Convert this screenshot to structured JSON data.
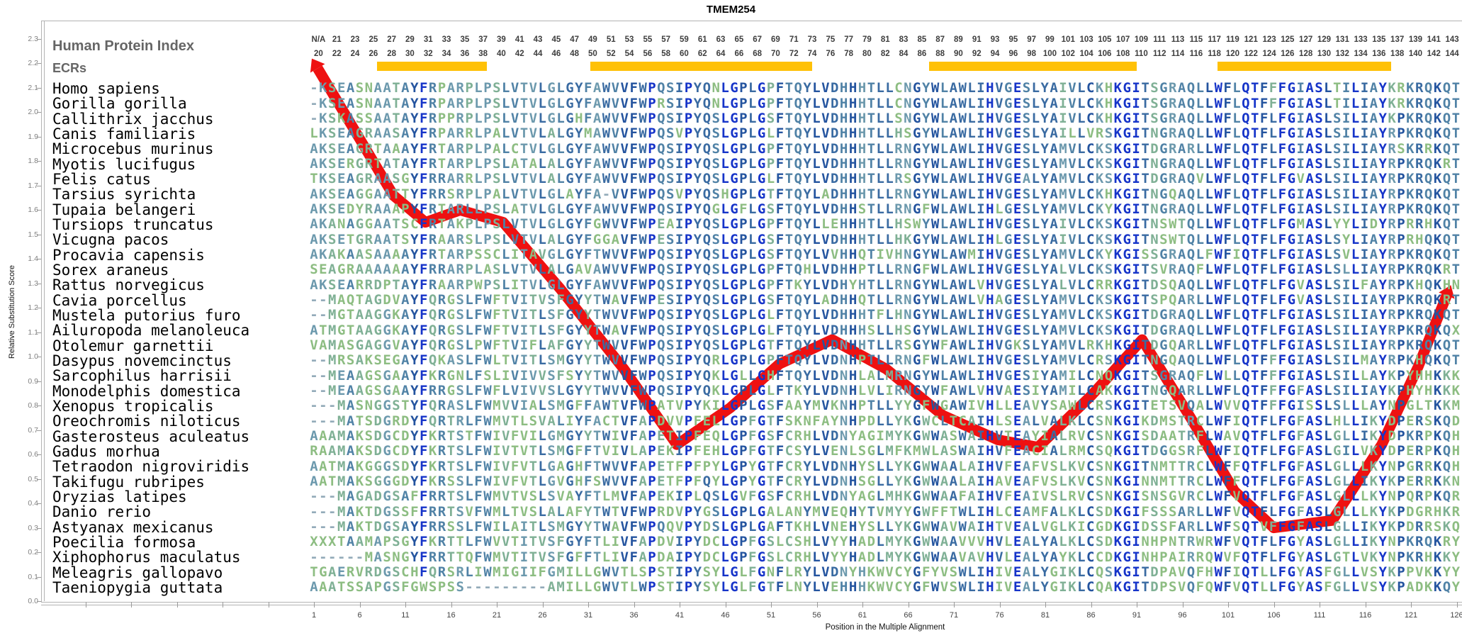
{
  "title": "TMEM254",
  "header": {
    "left_title": "Human Protein Index",
    "ecr_title": "ECRs",
    "index_row1": [
      "N/A",
      "21",
      "23",
      "25",
      "27",
      "29",
      "31",
      "33",
      "35",
      "37",
      "39",
      "41",
      "43",
      "45",
      "47",
      "49",
      "51",
      "53",
      "55",
      "57",
      "59",
      "61",
      "63",
      "65",
      "67",
      "69",
      "71",
      "73",
      "75",
      "77",
      "79",
      "81",
      "83",
      "85",
      "87",
      "89",
      "91",
      "93",
      "95",
      "97",
      "99",
      "101",
      "103",
      "105",
      "107",
      "109",
      "111",
      "113",
      "115",
      "117",
      "119",
      "121",
      "123",
      "125",
      "127",
      "129",
      "131",
      "133",
      "135",
      "137",
      "139",
      "141",
      "143"
    ],
    "index_row2": [
      "20",
      "22",
      "24",
      "26",
      "28",
      "30",
      "32",
      "34",
      "36",
      "38",
      "40",
      "42",
      "44",
      "46",
      "48",
      "50",
      "52",
      "54",
      "56",
      "58",
      "60",
      "62",
      "64",
      "66",
      "68",
      "70",
      "72",
      "74",
      "76",
      "78",
      "80",
      "82",
      "84",
      "86",
      "88",
      "90",
      "92",
      "94",
      "96",
      "98",
      "100",
      "102",
      "104",
      "106",
      "108",
      "110",
      "112",
      "114",
      "116",
      "118",
      "120",
      "122",
      "124",
      "126",
      "128",
      "130",
      "132",
      "134",
      "136",
      "138",
      "140",
      "142",
      "144"
    ]
  },
  "ecr_bars": [
    {
      "start": 8.4,
      "end": 19.4
    },
    {
      "start": 31.7,
      "end": 55.0
    },
    {
      "start": 68.8,
      "end": 90.5
    },
    {
      "start": 100.3,
      "end": 118.3
    }
  ],
  "y_axis": {
    "label": "Relative Substitution Score",
    "ticks": [
      "0.0",
      "0.1",
      "0.2",
      "0.3",
      "0.4",
      "0.5",
      "0.6",
      "0.7",
      "0.8",
      "0.9",
      "1.0",
      "1.1",
      "1.2",
      "1.3",
      "1.4",
      "1.5",
      "1.6",
      "1.7",
      "1.8",
      "1.9",
      "2.0",
      "2.1",
      "2.2",
      "2.3"
    ]
  },
  "x_axis": {
    "label": "Position in the Multiple Alignment",
    "ticks": [
      "1",
      "6",
      "11",
      "16",
      "21",
      "26",
      "31",
      "36",
      "41",
      "46",
      "51",
      "56",
      "61",
      "66",
      "71",
      "76",
      "81",
      "86",
      "91",
      "96",
      "101",
      "106",
      "111",
      "116",
      "121",
      "126"
    ]
  },
  "colors": {
    "ecr_bar": "#FFC107",
    "curve": "#ee1111",
    "header_numbers": "#3d3d3d",
    "section_titles": "#666666",
    "gap_char": "#93abb9",
    "conservation_palette": [
      {
        "min_freq": 0.97,
        "hex": "#1634c9"
      },
      {
        "min_freq": 0.85,
        "hex": "#24549f"
      },
      {
        "min_freq": 0.65,
        "hex": "#3a6ba2"
      },
      {
        "min_freq": 0.5,
        "hex": "#5082a6"
      },
      {
        "min_freq": 0.35,
        "hex": "#6c99ad"
      },
      {
        "min_freq": 0.2,
        "hex": "#7fb095"
      },
      {
        "min_freq": 0.0,
        "hex": "#8dbd82"
      }
    ]
  },
  "alignment": {
    "species": [
      {
        "name": "Homo sapiens",
        "seq": "-KSEASNAATAYFRPARPLPSLVTVLGLGYFAWVVFWPQSIPYQNLGPLGPFTQYLVDHHHTLLCNGYWLAWLIHVGESLYAIVLCKHKGITSGRAQLLWFLQTFFFGIASLTILIAYKRKRQKQT"
      },
      {
        "name": "Gorilla gorilla",
        "seq": "-KSEASNAATAYFRPARPLPSLVTVLGLGYFAWVVFWPRSIPYQNLGPLGPFTQYLVDHHHTLLCNGYWLAWLIHVGESLYAIVLCKHKGITSGRAQLLWFLQTFFFGIASLTILIAYKRKRQKQT"
      },
      {
        "name": "Callithrix jacchus",
        "seq": "-KSKASSAATAYFRPPRPLPSLVTVLGLGHFAWVVFWPQSIPYQSLGPLGSFTQYLVDHHHTLLSNGYWLAWLIHVGESLYAIVLCKHKGITSGRAQLLWFLQTFLFGIASLSILIAYKPKRQKQT"
      },
      {
        "name": "Canis familiaris",
        "seq": "LKSEAGRAASAYFRPARRLPALVTVLALGYMAWVVFWPQSVPYQSLGPLGLFTQYLVDHHHTLLHSGYWLAWLIHVGESLYAILLVRSKGITNGRAQLLWFLQTFLFGIASLSILIAYRPKRQKQT"
      },
      {
        "name": "Microcebus murinus",
        "seq": "AKSEAGRTAAAYFRTARPLPALCTVLGLGYFAWVVFWPQSIPYQSLGPLGPFTQYLVDHHHTLLRNGYWLAWLIHVGESLYAMVLCKSKGITDGRARLLWFLQTFLFGIASLSILIAYRSKRRKQT"
      },
      {
        "name": "Myotis lucifugus",
        "seq": "AKSERGRTATAYFRTARPLPSLATALALGYFAWVVFWPQSIPYQSLGPLGPFTQYLVDHHHTLLRNGYWLAWLIHVGESLYAMVLCKSKGITNGRAQLLWFLQTFLFGIASLSILIAYRPKRQKRT"
      },
      {
        "name": "Felis catus",
        "seq": "TKSEAGRAASGYFRRARRLPSLVTVLALGYFAWVVFWPQSIPYQSLGPLGLFTQYLVDHHHTLLRSGYWLAWLIHVGEALYAMVLCKSKGITDGRAQVLWFLQTFLFGVASLSILIAYRPKRQKQT"
      },
      {
        "name": "Tarsius syrichta",
        "seq": "AKSEAGGAATTYFRRSRPLPALVTVLGLAYFA-VVFWPQSVPYQSHGPLGTFTQYLADHHHTLLRNGYWLAWLIHVGESLYAMVLCKHKGITNGQAQLLWFLQTFLFGIASLSILIAYRPKRQKQT"
      },
      {
        "name": "Tupaia belangeri",
        "seq": "AKSEDYRAAAPYFRTARLLPSLATVLGLGYFAWVVFWPQSIPYQGLGFLGSFTQYLVDHHSTLLRNGFWLAWLIHLGESLYAMVLCKYKGITNGRAQLLWFLQTFLFGIASLSILIAYRPKRQKQT"
      },
      {
        "name": "Tursiops truncatus",
        "seq": "AKANAGGAATSCFRTAKPLPSLVTVLGLGYFGWVVFWPEAIPYQSLGPLGPFTQYLLEHHHTLLHSWYWLAWLIHVGESLYAIVLCKSKGITNSWTQLLWFLQTFLFGMASLYYLIDYRPRRHKQT"
      },
      {
        "name": "Vicugna pacos",
        "seq": "AKSETGRAATSYFRAARSLPSLVTVLALGYFGGAVFWPESIPYQSLGPLGSFTQYLVDHHHTLLHKGYWLAWLIHLGESLYAIVLCKSKGITNSWTQLLWFLQTFLFGIASLSYLIAYRPRHQKQT"
      },
      {
        "name": "Procavia capensis",
        "seq": "AKAKAASAAAAYFRTARPSSCLITAVGLGYFTWVVFWPQSIPYQSLGPLGSFTQYLVVHHQTIVHNGYWLAWMIHVGESLYAMVLCKYKGISSGRAQLFWFIQTFLFGIASLSVLIAYRPKRQKQT"
      },
      {
        "name": "Sorex araneus",
        "seq": "SEAGRAAAAAAYFRRARPLASLVTVLALGAVAWVVFWPQSIPYQSLGPLGPFTQHLVDHHPTLLRNGFWLAWLIHVGESLYALVLCKSKGITSVRAQFLWFLQTFLFGIASLSLLIAYRPKRQKRT"
      },
      {
        "name": "Rattus norvegicus",
        "seq": "AKSEARRDPTAYFRAARPWPSLITVLGLGYFAWVVFWPQSIPYQSLGPLGPFTKYLVDHYHTLLRNGYWLAWLVHVGESLYALVLCRRKGITDSQAQLLWFLQTFLFGVASLSILFAYRPKHQKHN"
      },
      {
        "name": "Cavia porcellus",
        "seq": "--MAQTAGDVAYFQRGSLFWFTVITVSFGYYTWAVFWPESIPYQSLGPLGSFTQYLADHHQTLLRNGYWLAWLVHAGESLYAMVLCKSKGITSPQARLLWFLQTFLFGVASLSILIAYRPKRQKRT"
      },
      {
        "name": "Mustela putorius furo",
        "seq": "--MGTAAGGKAYFQRGSLFWFTVITLSFGYYTWVVFWPQSIPYQSLGPLGLFTQYLVDHHHTFLHNGYWLAWLIHVGESLYAMVLCKSKGITDGRAQLLWFLQTFLFGIASLSILIAYRPKRQKQT"
      },
      {
        "name": "Ailuropoda melanoleuca",
        "seq": "ATMGTAAGGKAYFQRGSLFWFTVITLSFGYYTWAVFWPQSIPYQSLGPLGLFTQYLVDHHHSLLHSGYWLAWLIHVGESLYAMVLCKSKGITDGRAQLLWFLQTFLFGIASLSILIAYRPKRQKQX"
      },
      {
        "name": "Otolemur garnettii",
        "seq": "VAMASGAGGVAYFQRGSLPWFTVIFLAFGYYTWVVFWPQSIPYQSLGPLGTFTQYLVDNHHTLLRSGYWFAWLIHVGKSLYAMVLRKHKGITDGQARLLWFLQTFLFGIASLSILIAYRPKRQKQT"
      },
      {
        "name": "Dasypus novemcinctus",
        "seq": "--MRSAKSEGAYFQKASLFWLTVITLSMGYYTWVVFWPQSIPYQRLGPLGPFTQYLVDNHPTLLRNGFWLAWLIHVGESLYAMVLCRSKGITNGQAQLLWFLQTFFFGIASLSILMAYRPKHQKQT"
      },
      {
        "name": "Sarcophilus harrisii",
        "seq": "--MEAAGSGAAYFKRGNLFSLIVIVVSFSYYTWVVFWPQSIPYQKLGLLGHFTQYLVDNHLALMRNGYWLAWLIHVGESIYAMILCNQKGITSGRAQFLWLLQTFFFGIASLSILLAYKPYHHKKK"
      },
      {
        "name": "Monodelphis domestica",
        "seq": "--MEAAGSGAAYFRRGSLFWFLVIVVSLGYYTWVVFWPQSIPYQKLGPLGLFTKYLVDNHLVLIRNGYWFAWLVHVAESIYAMILCAKKGITNGQARLLWFLQTFFFGFASLSILIAYKPHYHKKK"
      },
      {
        "name": "Xenopus tropicalis",
        "seq": "---MASNGGSTYFQRASLFWMVVIALSMGFFAWTVFWPATVPYKILGPLGSFAAYMVKNHPTLLYYGFWGAWIVHLLEAVYSAWLCRSKGITETSVQALWVVQTFFFGISSLSLLLAYNPGLTKKM"
      },
      {
        "name": "Oreochromis niloticus",
        "seq": "---MATSDGRDYFQRTRLFWMVTLSVALIYFACTVFAPDVVPFELLGPFGTFSKNFAYNHPDLLYKGWCLTCAIHLSEALVALKLCSNKGIKDMSTRCLWFIQTFLFGFASLHLLIKYDPERSKQD"
      },
      {
        "name": "Gasterosteus aculeatus",
        "seq": "AAAMAKSDGCDYFKRTSTFWIVFVILGMGYYTWIVFAPETIPFEQLGPFGSFCRHLVDNYAGIMYKGWWASWAIHVTEAYIALRVCSNKGISDAATRFLWAVQTFLFGFASLGLLIKYDPKRPKQH"
      },
      {
        "name": "Gadus morhua",
        "seq": "RAAMAKSDGCDYFKRTSLFWIVTVTLSMGFFTVIVLAPEKIPFEHLGPFGTFCSYLVENLSGLMFKMWLASWAIHVFEACIALRMCSQKGITDGGSRFLWFIQTFLFGFASLGILVKYDPERPKQH"
      },
      {
        "name": "Tetraodon nigroviridis",
        "seq": "AATMAKGGGSDYFKRTSLFWIVFVTLGAGHFTWVVFAPETFPFPYLGPYGTFCRYLVDNHYSLLYKGWWAALAIHVFEAFVSLKVCSNKGITNMTTRCLWFFQTFLFGFASLGLLLKYNPGRRKQH"
      },
      {
        "name": "Takifugu rubripes",
        "seq": "AATMAKSGGGDYFKRSSLFWIVFVTLGVGHFSWVVFAPETFPFQYLGPYGTFCRYLVDNHSGLLYKGWWAALAIHAVEAFVSLKVCSNKGINNMTTRCLWFFQTFLFGFASLGLLIKYKPERRKKN"
      },
      {
        "name": "Oryzias latipes",
        "seq": "---MAGADGSAFFRRTSLFWMVTVSLSVAYFTLMVFAPEKIPLQSLGVFGSFCRHLVDNYAGLMHKGWWAAFAIHVFEAIVSLRVCSNKGISNSGVRCLWFVQTFLFGFASLGLLLKYNPQRPKQR"
      },
      {
        "name": "Danio rerio",
        "seq": "---MAKTDGSSFFRRTSVFWMLTVSLALAFYTWTVFWPRDVPYGSLGPLGALANYMVEQHYTVMYYGWFFTWLIHLCEAMFALKLCSDKGIFSSSARLLWFVQTFLFGFASLGLLLKYKPDGRHKR"
      },
      {
        "name": "Astyanax mexicanus",
        "seq": "---MAKTDGSAYFRRSSLFWILAITLSMGYYTWAVFWPQQVPYDSLGPLGAFTKHLVNEHYSLLYKGWWAVWAIHTVEALVGLKICGDKGIDSSFARLLWFSQTVFFGFASLGLLIKYKPDRRSKQ"
      },
      {
        "name": "Poecilia formosa",
        "seq": "XXXTAAMAPSGYFKRTTLFWVVTITVSFGYFTLIVFAPDVIPYDCLGPFGSLCSHLVYYHADLMYKGWWAAVVVHVLEALYALKLCSDKGINHPNTRWRWFVQTFLFGYASLGLLIKYNPKRQKRY"
      },
      {
        "name": "Xiphophorus maculatus",
        "seq": "------MASNGYFRRTTQFWMVTITVSFGFFTLIVFAPDAIPYDCLGPFGSLCRHLVYYHADLMYKGWWAAVAVHVLEALYAYKLCCDKGINHPAIRRQWVFQTFLFGYASLGTLVKYNPKRHKKY"
      },
      {
        "name": "Meleagris gallopavo",
        "seq": "TGAERVRDGSCHFQRSRLIWMIGIIFGMILLGWVTLSPSTIPYSYLGLFGNFLRYLVDNYHKWVCYGFYVSWLIHIVEALYGIKLCQSKGITDPAVQFHWFIQTLLFGYASFGLLVSYKPPVKKYY"
      },
      {
        "name": "Taeniopygia guttata",
        "seq": "AAATSSAPGSFGWSPSS---------AMILLGWVTLWPSTIPYSYLGLFGTFLNYLVEHHHKWVCYGFWVSWLIHIVEALYGIKLCQAKGITDPSVQFQWFVQTLLFGYASFGLLVSYKPADKKQY"
      }
    ]
  },
  "chart_data": {
    "type": "line",
    "title": "TMEM254",
    "xlabel": "Position in the Multiple Alignment",
    "ylabel": "Relative Substitution Score",
    "xlim": [
      1,
      126
    ],
    "ylim": [
      0.0,
      2.3
    ],
    "grid": false,
    "legend": "none",
    "ecr_regions_alignment_cols": [
      [
        8,
        19
      ],
      [
        32,
        55
      ],
      [
        69,
        90
      ],
      [
        100,
        118
      ]
    ],
    "series": [
      {
        "name": "relative-substitution-score",
        "color": "#ee1111",
        "points": [
          {
            "x": 1.4,
            "y": 2.18
          },
          {
            "x": 9.7,
            "y": 1.66
          },
          {
            "x": 13.2,
            "y": 1.55
          },
          {
            "x": 17.0,
            "y": 1.6
          },
          {
            "x": 21.7,
            "y": 1.55
          },
          {
            "x": 27.9,
            "y": 1.28
          },
          {
            "x": 34.9,
            "y": 0.95
          },
          {
            "x": 40.7,
            "y": 0.64
          },
          {
            "x": 46.5,
            "y": 0.79
          },
          {
            "x": 51.9,
            "y": 0.97
          },
          {
            "x": 57.7,
            "y": 1.07
          },
          {
            "x": 63.6,
            "y": 0.95
          },
          {
            "x": 69.8,
            "y": 0.76
          },
          {
            "x": 75.8,
            "y": 0.66
          },
          {
            "x": 80.2,
            "y": 0.63
          },
          {
            "x": 86.0,
            "y": 0.84
          },
          {
            "x": 91.6,
            "y": 1.07
          },
          {
            "x": 96.9,
            "y": 0.75
          },
          {
            "x": 101.7,
            "y": 0.45
          },
          {
            "x": 106.0,
            "y": 0.3
          },
          {
            "x": 112.4,
            "y": 0.33
          },
          {
            "x": 117.8,
            "y": 0.64
          },
          {
            "x": 121.8,
            "y": 0.96
          },
          {
            "x": 124.9,
            "y": 1.25
          }
        ]
      }
    ]
  }
}
